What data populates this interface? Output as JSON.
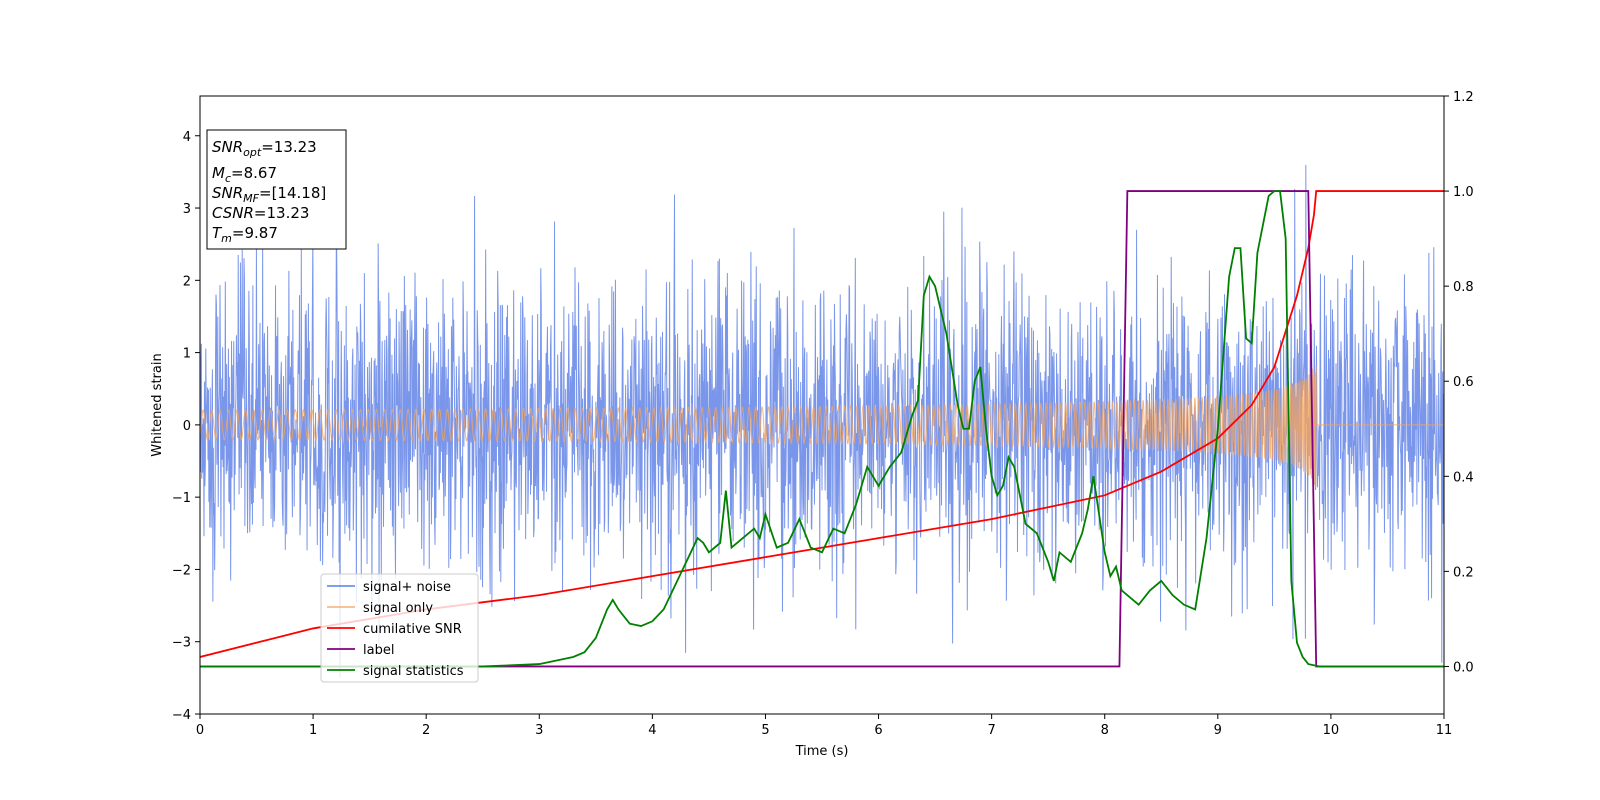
{
  "chart_data": {
    "type": "line",
    "title": "",
    "xlabel": "Time (s)",
    "ylabel": "Whitened strain",
    "ylabel_right": "",
    "xlim": [
      0,
      11
    ],
    "ylim": [
      -4,
      4.55
    ],
    "ylim_right": [
      -0.1,
      1.2
    ],
    "x_ticks": [
      0,
      1,
      2,
      3,
      4,
      5,
      6,
      7,
      8,
      9,
      10,
      11
    ],
    "y_ticks": [
      -4,
      -3,
      -2,
      -1,
      0,
      1,
      2,
      3,
      4
    ],
    "y_ticks_right": [
      0.0,
      0.2,
      0.4,
      0.6,
      0.8,
      1.0,
      1.2
    ],
    "grid": false,
    "legend_position": "lower-left",
    "annotation": {
      "lines": [
        {
          "main": "SNR",
          "sub": "opt",
          "rest": "=13.23"
        },
        {
          "main": "M",
          "sub": "c",
          "rest": "=8.67"
        },
        {
          "main": "SNR",
          "sub": "MF",
          "rest": "=[14.18]"
        },
        {
          "main": "CSNR",
          "sub": "",
          "rest": "=13.23"
        },
        {
          "main": "T",
          "sub": "m",
          "rest": "=9.87"
        }
      ]
    },
    "series": [
      {
        "name": "signal+ noise",
        "color": "#4169e1",
        "axis": "left",
        "kind": "noise",
        "amplitude_sigma": 1.0,
        "x_range": [
          0,
          11
        ]
      },
      {
        "name": "signal only",
        "color": "#f4a460",
        "axis": "left",
        "kind": "chirp",
        "merger_time": 9.87,
        "peak_amplitude": 0.9,
        "x_range": [
          0,
          11
        ]
      },
      {
        "name": "cumilative SNR",
        "color": "#ff0000",
        "axis": "right",
        "x": [
          0,
          1,
          2,
          3,
          4,
          5,
          6,
          7,
          8,
          8.5,
          9,
          9.3,
          9.5,
          9.7,
          9.8,
          9.85,
          9.87,
          10,
          11
        ],
        "y": [
          0.02,
          0.08,
          0.12,
          0.15,
          0.19,
          0.23,
          0.27,
          0.31,
          0.36,
          0.41,
          0.48,
          0.55,
          0.63,
          0.78,
          0.88,
          0.95,
          1.0,
          1.0,
          1.0
        ]
      },
      {
        "name": "label",
        "color": "#800080",
        "axis": "right",
        "x": [
          0,
          8.13,
          8.2,
          9.8,
          9.87,
          11
        ],
        "y": [
          0.0,
          0.0,
          1.0,
          1.0,
          0.0,
          0.0
        ]
      },
      {
        "name": "signal statistics",
        "color": "#008000",
        "axis": "right",
        "x": [
          0,
          1,
          2,
          2.5,
          3,
          3.2,
          3.3,
          3.4,
          3.5,
          3.6,
          3.65,
          3.7,
          3.8,
          3.9,
          4.0,
          4.1,
          4.2,
          4.3,
          4.4,
          4.45,
          4.5,
          4.6,
          4.65,
          4.7,
          4.8,
          4.9,
          4.95,
          5.0,
          5.1,
          5.2,
          5.3,
          5.4,
          5.5,
          5.6,
          5.7,
          5.8,
          5.9,
          6.0,
          6.1,
          6.2,
          6.3,
          6.35,
          6.4,
          6.45,
          6.5,
          6.55,
          6.6,
          6.7,
          6.75,
          6.8,
          6.85,
          6.9,
          6.95,
          7.0,
          7.05,
          7.1,
          7.15,
          7.2,
          7.25,
          7.3,
          7.4,
          7.5,
          7.55,
          7.6,
          7.7,
          7.8,
          7.85,
          7.9,
          8.0,
          8.05,
          8.1,
          8.15,
          8.2,
          8.3,
          8.4,
          8.5,
          8.6,
          8.7,
          8.8,
          8.9,
          9.0,
          9.1,
          9.15,
          9.2,
          9.25,
          9.3,
          9.35,
          9.4,
          9.45,
          9.5,
          9.55,
          9.6,
          9.65,
          9.7,
          9.75,
          9.8,
          9.9,
          10.0,
          11.0
        ],
        "y": [
          0.0,
          0.0,
          0.0,
          0.0,
          0.005,
          0.015,
          0.02,
          0.03,
          0.06,
          0.12,
          0.14,
          0.12,
          0.09,
          0.085,
          0.095,
          0.12,
          0.17,
          0.22,
          0.27,
          0.26,
          0.24,
          0.26,
          0.37,
          0.25,
          0.27,
          0.29,
          0.27,
          0.32,
          0.25,
          0.26,
          0.31,
          0.25,
          0.24,
          0.29,
          0.28,
          0.34,
          0.42,
          0.38,
          0.42,
          0.45,
          0.53,
          0.56,
          0.78,
          0.82,
          0.8,
          0.75,
          0.7,
          0.55,
          0.5,
          0.5,
          0.6,
          0.63,
          0.5,
          0.4,
          0.36,
          0.38,
          0.44,
          0.42,
          0.36,
          0.3,
          0.28,
          0.22,
          0.18,
          0.24,
          0.22,
          0.28,
          0.33,
          0.4,
          0.24,
          0.19,
          0.21,
          0.16,
          0.15,
          0.13,
          0.16,
          0.18,
          0.15,
          0.13,
          0.12,
          0.27,
          0.5,
          0.82,
          0.88,
          0.88,
          0.69,
          0.68,
          0.87,
          0.93,
          0.99,
          1.0,
          1.0,
          0.9,
          0.18,
          0.05,
          0.02,
          0.005,
          0.0,
          0.0,
          0.0
        ]
      }
    ]
  }
}
